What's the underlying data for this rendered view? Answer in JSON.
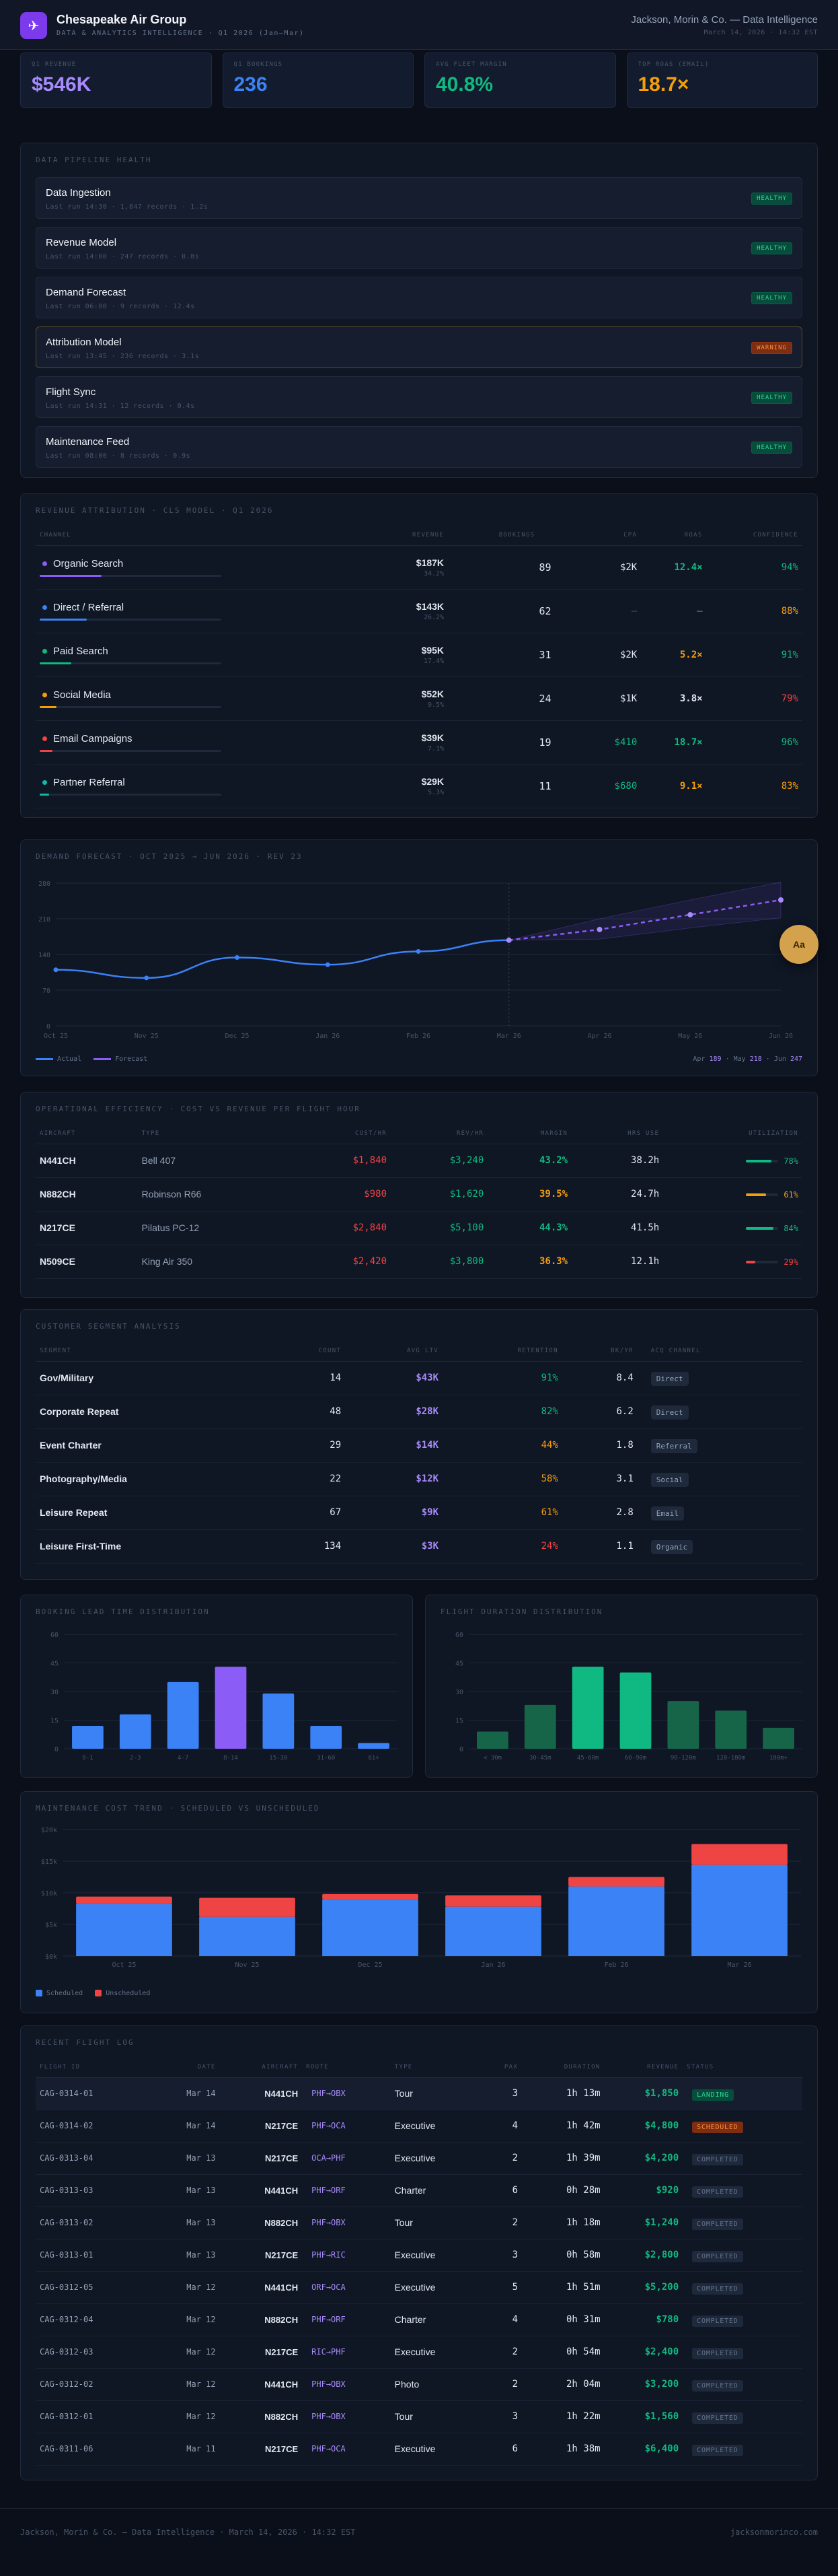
{
  "header": {
    "title": "Chesapeake Air Group",
    "subtitle": "DATA & ANALYTICS INTELLIGENCE · Q1 2026 (Jan–Mar)",
    "right_title": "Jackson, Morin & Co. — Data Intelligence",
    "right_meta": "March 14, 2026 · 14:32 EST",
    "logo_icon": "plane-icon"
  },
  "kpis": [
    {
      "label": "Q1 REVENUE",
      "value": "$546K",
      "color": "#a78bfa"
    },
    {
      "label": "Q1 BOOKINGS",
      "value": "236",
      "color": "#3b82f6"
    },
    {
      "label": "AVG FLEET MARGIN",
      "value": "40.8%",
      "color": "#10b981"
    },
    {
      "label": "TOP ROAS (EMAIL)",
      "value": "18.7×",
      "color": "#f59e0b"
    }
  ],
  "pipeline": {
    "title": "DATA PIPELINE HEALTH",
    "items": [
      {
        "name": "Data Ingestion",
        "meta": "Last run 14:30 · 1,847 records · 1.2s",
        "status": "HEALTHY"
      },
      {
        "name": "Revenue Model",
        "meta": "Last run 14:00 · 247 records · 0.8s",
        "status": "HEALTHY"
      },
      {
        "name": "Demand Forecast",
        "meta": "Last run 06:00 · 9 records · 12.4s",
        "status": "HEALTHY"
      },
      {
        "name": "Attribution Model",
        "meta": "Last run 13:45 · 236 records · 3.1s",
        "status": "WARNING"
      },
      {
        "name": "Flight Sync",
        "meta": "Last run 14:31 · 12 records · 0.4s",
        "status": "HEALTHY"
      },
      {
        "name": "Maintenance Feed",
        "meta": "Last run 08:00 · 8 records · 0.9s",
        "status": "HEALTHY"
      }
    ]
  },
  "attribution": {
    "title": "REVENUE ATTRIBUTION · CLS MODEL · Q1 2026",
    "headers": [
      "CHANNEL",
      "REVENUE",
      "BOOKINGS",
      "CPA",
      "ROAS",
      "CONFIDENCE"
    ],
    "rows": [
      {
        "channel": "Organic Search",
        "dot": "#8b5cf6",
        "bar": 0.343,
        "revenue": "$187K",
        "share": "34.2%",
        "bookings": "89",
        "cpa": "$2K",
        "cpa_color": "#e2e8f0",
        "roas": "12.4×",
        "roas_color": "#10b981",
        "confidence": "94%",
        "conf_color": "#10b981"
      },
      {
        "channel": "Direct / Referral",
        "dot": "#3b82f6",
        "bar": 0.262,
        "revenue": "$143K",
        "share": "26.2%",
        "bookings": "62",
        "cpa": "—",
        "cpa_color": "#475569",
        "roas": "—",
        "roas_color": "#475569",
        "confidence": "88%",
        "conf_color": "#f59e0b"
      },
      {
        "channel": "Paid Search",
        "dot": "#10b981",
        "bar": 0.174,
        "revenue": "$95K",
        "share": "17.4%",
        "bookings": "31",
        "cpa": "$2K",
        "cpa_color": "#e2e8f0",
        "roas": "5.2×",
        "roas_color": "#f59e0b",
        "confidence": "91%",
        "conf_color": "#10b981"
      },
      {
        "channel": "Social Media",
        "dot": "#f59e0b",
        "bar": 0.095,
        "revenue": "$52K",
        "share": "9.5%",
        "bookings": "24",
        "cpa": "$1K",
        "cpa_color": "#e2e8f0",
        "roas": "3.8×",
        "roas_color": "#e2e8f0",
        "confidence": "79%",
        "conf_color": "#ef4444"
      },
      {
        "channel": "Email Campaigns",
        "dot": "#ef4444",
        "bar": 0.071,
        "revenue": "$39K",
        "share": "7.1%",
        "bookings": "19",
        "cpa": "$410",
        "cpa_color": "#10b981",
        "roas": "18.7×",
        "roas_color": "#10b981",
        "confidence": "96%",
        "conf_color": "#10b981"
      },
      {
        "channel": "Partner Referral",
        "dot": "#14b8a6",
        "bar": 0.053,
        "revenue": "$29K",
        "share": "5.3%",
        "bookings": "11",
        "cpa": "$680",
        "cpa_color": "#10b981",
        "roas": "9.1×",
        "roas_color": "#f59e0b",
        "confidence": "83%",
        "conf_color": "#f59e0b"
      }
    ]
  },
  "forecast": {
    "title": "DEMAND FORECAST · OCT 2025 → JUN 2026 · REV 23",
    "legend_actual": "Actual",
    "legend_forecast": "Forecast",
    "summary_label_apr": "Apr",
    "summary_apr": "189",
    "summary_label_may": "May",
    "summary_may": "218",
    "summary_label_jun": "Jun",
    "summary_jun": "247",
    "avatar": "Aa"
  },
  "chart_data": [
    {
      "type": "line",
      "title": "DEMAND FORECAST · OCT 2025 → JUN 2026 · REV 23",
      "x": [
        "Oct 25",
        "Nov 25",
        "Dec 25",
        "Jan 26",
        "Feb 26",
        "Mar 26",
        "Apr 26",
        "May 26",
        "Jun 26"
      ],
      "ylim": [
        0,
        280
      ],
      "yticks": [
        "0",
        "70",
        "140",
        "210",
        "280"
      ],
      "series": [
        {
          "name": "Actual",
          "values": [
            110,
            94,
            134,
            120,
            146,
            168,
            null,
            null,
            null
          ]
        },
        {
          "name": "Forecast",
          "values": [
            null,
            null,
            null,
            null,
            null,
            168,
            189,
            218,
            247
          ]
        }
      ],
      "band_upper": [
        null,
        null,
        null,
        null,
        null,
        168,
        210,
        247,
        282
      ],
      "band_lower": [
        null,
        null,
        null,
        null,
        null,
        168,
        170,
        192,
        212
      ]
    },
    {
      "type": "bar",
      "title": "BOOKING LEAD TIME DISTRIBUTION",
      "categories": [
        "0-1",
        "2-3",
        "4-7",
        "8-14",
        "15-30",
        "31-60",
        "61+"
      ],
      "values": [
        12,
        18,
        35,
        43,
        29,
        12,
        3
      ],
      "ylim": [
        0,
        60
      ],
      "yticks": [
        "0",
        "15",
        "30",
        "45",
        "60"
      ]
    },
    {
      "type": "bar",
      "title": "FLIGHT DURATION DISTRIBUTION",
      "categories": [
        "< 30m",
        "30-45m",
        "45-60m",
        "60-90m",
        "90-120m",
        "120-180m",
        "180m+"
      ],
      "values": [
        9,
        23,
        43,
        40,
        25,
        20,
        11
      ],
      "ylim": [
        0,
        60
      ],
      "yticks": [
        "0",
        "15",
        "30",
        "45",
        "60"
      ]
    },
    {
      "type": "bar",
      "title": "MAINTENANCE COST TREND · SCHEDULED VS UNSCHEDULED",
      "categories": [
        "Oct 25",
        "Nov 25",
        "Dec 25",
        "Jan 26",
        "Feb 26",
        "Mar 26"
      ],
      "series": [
        {
          "name": "Scheduled",
          "values": [
            8200,
            6200,
            9000,
            7800,
            11000,
            14400
          ]
        },
        {
          "name": "Unscheduled",
          "values": [
            1200,
            3000,
            800,
            1800,
            1500,
            3300
          ]
        }
      ],
      "ylim": [
        0,
        20000
      ],
      "yticks": [
        "$0k",
        "$5k",
        "$10k",
        "$15k",
        "$20k"
      ]
    }
  ],
  "fleet": {
    "title": "OPERATIONAL EFFICIENCY · COST VS REVENUE PER FLIGHT HOUR",
    "headers": [
      "AIRCRAFT",
      "TYPE",
      "COST/HR",
      "REV/HR",
      "MARGIN",
      "HRS USE",
      "UTILIZATION"
    ],
    "rows": [
      {
        "tail": "N441CH",
        "type": "Bell 407",
        "cost": "$1,840",
        "rev": "$3,240",
        "margin": "43.2%",
        "margin_color": "#10b981",
        "hrs": "38.2h",
        "util": 0.78,
        "util_label": "78%",
        "util_color": "#10b981"
      },
      {
        "tail": "N882CH",
        "type": "Robinson R66",
        "cost": "$980",
        "rev": "$1,620",
        "margin": "39.5%",
        "margin_color": "#f59e0b",
        "hrs": "24.7h",
        "util": 0.61,
        "util_label": "61%",
        "util_color": "#f59e0b"
      },
      {
        "tail": "N217CE",
        "type": "Pilatus PC-12",
        "cost": "$2,840",
        "rev": "$5,100",
        "margin": "44.3%",
        "margin_color": "#10b981",
        "hrs": "41.5h",
        "util": 0.84,
        "util_label": "84%",
        "util_color": "#10b981"
      },
      {
        "tail": "N509CE",
        "type": "King Air 350",
        "cost": "$2,420",
        "rev": "$3,800",
        "margin": "36.3%",
        "margin_color": "#f59e0b",
        "hrs": "12.1h",
        "util": 0.29,
        "util_label": "29%",
        "util_color": "#ef4444"
      }
    ]
  },
  "segments": {
    "title": "CUSTOMER SEGMENT ANALYSIS",
    "headers": [
      "SEGMENT",
      "COUNT",
      "AVG LTV",
      "RETENTION",
      "BK/YR",
      "ACQ CHANNEL"
    ],
    "rows": [
      {
        "segment": "Gov/Military",
        "count": "14",
        "ltv": "$43K",
        "retention": "91%",
        "ret_color": "#10b981",
        "bkyr": "8.4",
        "channel": "Direct"
      },
      {
        "segment": "Corporate Repeat",
        "count": "48",
        "ltv": "$28K",
        "retention": "82%",
        "ret_color": "#10b981",
        "bkyr": "6.2",
        "channel": "Direct"
      },
      {
        "segment": "Event Charter",
        "count": "29",
        "ltv": "$14K",
        "retention": "44%",
        "ret_color": "#f59e0b",
        "bkyr": "1.8",
        "channel": "Referral"
      },
      {
        "segment": "Photography/Media",
        "count": "22",
        "ltv": "$12K",
        "retention": "58%",
        "ret_color": "#f59e0b",
        "bkyr": "3.1",
        "channel": "Social"
      },
      {
        "segment": "Leisure Repeat",
        "count": "67",
        "ltv": "$9K",
        "retention": "61%",
        "ret_color": "#f59e0b",
        "bkyr": "2.8",
        "channel": "Email"
      },
      {
        "segment": "Leisure First-Time",
        "count": "134",
        "ltv": "$3K",
        "retention": "24%",
        "ret_color": "#ef4444",
        "bkyr": "1.1",
        "channel": "Organic"
      }
    ]
  },
  "lead_time": {
    "title": "BOOKING LEAD TIME DISTRIBUTION",
    "colors": [
      "#3b82f6",
      "#3b82f6",
      "#3b82f6",
      "#8b5cf6",
      "#3b82f6",
      "#3b82f6",
      "#3b82f6"
    ]
  },
  "duration": {
    "title": "FLIGHT DURATION DISTRIBUTION",
    "colors": [
      "#166549",
      "#166549",
      "#10b981",
      "#10b981",
      "#166549",
      "#166549",
      "#166549"
    ]
  },
  "maintenance": {
    "title": "MAINTENANCE COST TREND · SCHEDULED VS UNSCHEDULED",
    "legend_scheduled": "Scheduled",
    "legend_unscheduled": "Unscheduled",
    "color_scheduled": "#3b82f6",
    "color_unscheduled": "#ef4444"
  },
  "flights": {
    "title": "RECENT FLIGHT LOG",
    "headers": [
      "FLIGHT ID",
      "DATE",
      "AIRCRAFT",
      "ROUTE",
      "TYPE",
      "PAX",
      "DURATION",
      "REVENUE",
      "STATUS"
    ],
    "rows": [
      {
        "id": "CAG-0314-01",
        "date": "Mar 14",
        "aircraft": "N441CH",
        "route": "PHF→OBX",
        "type": "Tour",
        "pax": "3",
        "duration": "1h 13m",
        "revenue": "$1,850",
        "status": "LANDING",
        "status_class": "stat-landed"
      },
      {
        "id": "CAG-0314-02",
        "date": "Mar 14",
        "aircraft": "N217CE",
        "route": "PHF→OCA",
        "type": "Executive",
        "pax": "4",
        "duration": "1h 42m",
        "revenue": "$4,800",
        "status": "SCHEDULED",
        "status_class": "stat-sched"
      },
      {
        "id": "CAG-0313-04",
        "date": "Mar 13",
        "aircraft": "N217CE",
        "route": "OCA→PHF",
        "type": "Executive",
        "pax": "2",
        "duration": "1h 39m",
        "revenue": "$4,200",
        "status": "COMPLETED",
        "status_class": ""
      },
      {
        "id": "CAG-0313-03",
        "date": "Mar 13",
        "aircraft": "N441CH",
        "route": "PHF→ORF",
        "type": "Charter",
        "pax": "6",
        "duration": "0h 28m",
        "revenue": "$920",
        "status": "COMPLETED",
        "status_class": ""
      },
      {
        "id": "CAG-0313-02",
        "date": "Mar 13",
        "aircraft": "N882CH",
        "route": "PHF→OBX",
        "type": "Tour",
        "pax": "2",
        "duration": "1h 18m",
        "revenue": "$1,240",
        "status": "COMPLETED",
        "status_class": ""
      },
      {
        "id": "CAG-0313-01",
        "date": "Mar 13",
        "aircraft": "N217CE",
        "route": "PHF→RIC",
        "type": "Executive",
        "pax": "3",
        "duration": "0h 58m",
        "revenue": "$2,800",
        "status": "COMPLETED",
        "status_class": ""
      },
      {
        "id": "CAG-0312-05",
        "date": "Mar 12",
        "aircraft": "N441CH",
        "route": "ORF→OCA",
        "type": "Executive",
        "pax": "5",
        "duration": "1h 51m",
        "revenue": "$5,200",
        "status": "COMPLETED",
        "status_class": ""
      },
      {
        "id": "CAG-0312-04",
        "date": "Mar 12",
        "aircraft": "N882CH",
        "route": "PHF→ORF",
        "type": "Charter",
        "pax": "4",
        "duration": "0h 31m",
        "revenue": "$780",
        "status": "COMPLETED",
        "status_class": ""
      },
      {
        "id": "CAG-0312-03",
        "date": "Mar 12",
        "aircraft": "N217CE",
        "route": "RIC→PHF",
        "type": "Executive",
        "pax": "2",
        "duration": "0h 54m",
        "revenue": "$2,400",
        "status": "COMPLETED",
        "status_class": ""
      },
      {
        "id": "CAG-0312-02",
        "date": "Mar 12",
        "aircraft": "N441CH",
        "route": "PHF→OBX",
        "type": "Photo",
        "pax": "2",
        "duration": "2h 04m",
        "revenue": "$3,200",
        "status": "COMPLETED",
        "status_class": ""
      },
      {
        "id": "CAG-0312-01",
        "date": "Mar 12",
        "aircraft": "N882CH",
        "route": "PHF→OBX",
        "type": "Tour",
        "pax": "3",
        "duration": "1h 22m",
        "revenue": "$1,560",
        "status": "COMPLETED",
        "status_class": ""
      },
      {
        "id": "CAG-0311-06",
        "date": "Mar 11",
        "aircraft": "N217CE",
        "route": "PHF→OCA",
        "type": "Executive",
        "pax": "6",
        "duration": "1h 38m",
        "revenue": "$6,400",
        "status": "COMPLETED",
        "status_class": ""
      }
    ]
  },
  "footer": {
    "left": "Jackson, Morin & Co. — Data Intelligence · March 14, 2026 · 14:32 EST",
    "right": "jacksonmorinco.com"
  }
}
